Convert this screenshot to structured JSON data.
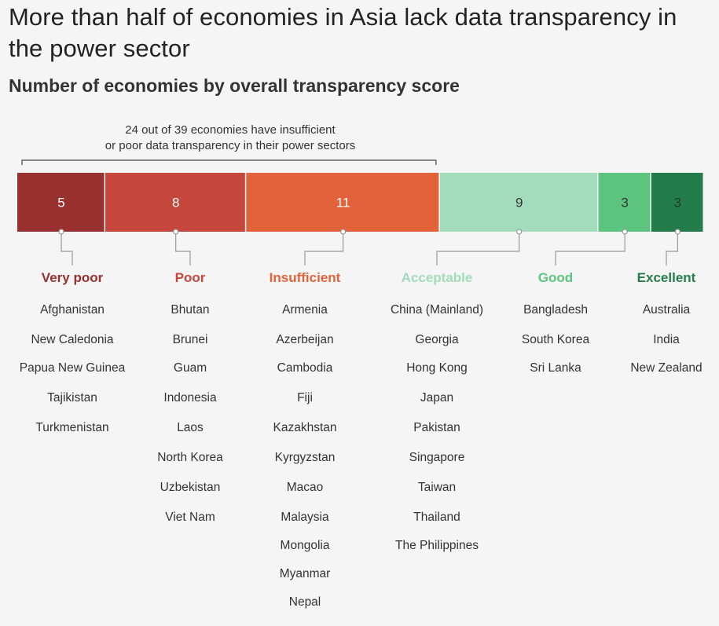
{
  "title": "More than half of economies in Asia lack data transparency in the power sector",
  "subtitle": "Number of economies by overall transparency score",
  "annotation": {
    "line1": "24 out of 39 economies have insufficient",
    "line2": "or poor data transparency in their power sectors"
  },
  "colors": {
    "very_poor": "#97302f",
    "poor": "#c5463b",
    "insufficient": "#e2623a",
    "acceptable": "#a3dbbd",
    "good": "#5cc47e",
    "excellent": "#237d4a"
  },
  "chart_data": {
    "type": "bar",
    "orientation": "stacked-horizontal",
    "categories": [
      "Very poor",
      "Poor",
      "Insufficient",
      "Acceptable",
      "Good",
      "Excellent"
    ],
    "values": [
      5,
      8,
      11,
      9,
      3,
      3
    ],
    "economies": [
      [
        "Afghanistan",
        "New Caledonia",
        "Papua New Guinea",
        "Tajikistan",
        "Turkmenistan"
      ],
      [
        "Bhutan",
        "Brunei",
        "Guam",
        "Indonesia",
        "Laos",
        "North Korea",
        "Uzbekistan",
        "Viet Nam"
      ],
      [
        "Armenia",
        "Azerbeijan",
        "Cambodia",
        "Fiji",
        "Kazakhstan",
        "Kyrgyzstan",
        "Macao",
        "Malaysia",
        "Mongolia",
        "Myanmar",
        "Nepal"
      ],
      [
        "China (Mainland)",
        "Georgia",
        "Hong Kong",
        "Japan",
        "Pakistan",
        "Singapore",
        "Taiwan",
        "Thailand",
        "The Philippines"
      ],
      [
        "Bangladesh",
        "South Korea",
        "Sri Lanka"
      ],
      [
        "Australia",
        "India",
        "New Zealand"
      ]
    ]
  }
}
